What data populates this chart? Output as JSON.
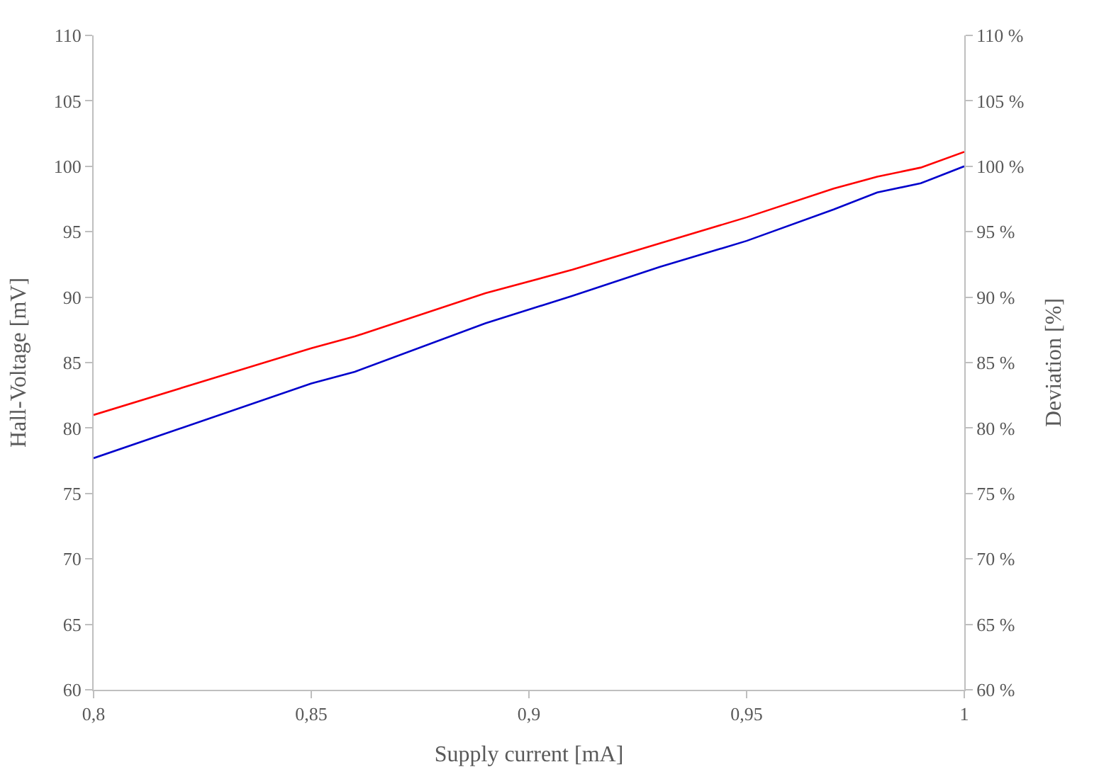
{
  "chart_data": {
    "type": "line",
    "xlabel": "Supply current [mA]",
    "ylabel": "Hall-Voltage [mV]",
    "y2label": "Deviation [%]",
    "x": [
      0.8,
      0.85,
      0.86,
      0.89,
      0.91,
      0.93,
      0.95,
      0.97,
      0.98,
      0.99,
      1.0
    ],
    "series": [
      {
        "color": "#ff0000",
        "values": [
          81.0,
          86.1,
          87.0,
          90.3,
          92.1,
          94.1,
          96.1,
          98.3,
          99.2,
          99.9,
          101.1
        ]
      },
      {
        "color": "#0000cc",
        "axis": "y2",
        "values": [
          77.7,
          83.4,
          84.3,
          88.0,
          90.1,
          92.3,
          94.3,
          96.7,
          98.0,
          98.7,
          100.0
        ]
      }
    ],
    "xlim": [
      0.8,
      1.0
    ],
    "xticks": [
      {
        "value": 0.8,
        "label": "0,8"
      },
      {
        "value": 0.85,
        "label": "0,85"
      },
      {
        "value": 0.9,
        "label": "0,9"
      },
      {
        "value": 0.95,
        "label": "0,95"
      },
      1
    ],
    "ylim": [
      60,
      110
    ],
    "yticks": [
      60,
      65,
      70,
      75,
      80,
      85,
      90,
      95,
      100,
      105,
      110
    ],
    "y2lim": [
      60,
      110
    ],
    "y2ticks": [
      {
        "value": 60,
        "label": "60 %"
      },
      {
        "value": 65,
        "label": "65 %"
      },
      {
        "value": 70,
        "label": "70 %"
      },
      {
        "value": 75,
        "label": "75 %"
      },
      {
        "value": 80,
        "label": "80 %"
      },
      {
        "value": 85,
        "label": "85 %"
      },
      {
        "value": 90,
        "label": "90 %"
      },
      {
        "value": 95,
        "label": "95 %"
      },
      {
        "value": 100,
        "label": "100 %"
      },
      {
        "value": 105,
        "label": "105 %"
      },
      {
        "value": 110,
        "label": "110 %"
      }
    ],
    "marker": "none",
    "line_style": "solid"
  }
}
